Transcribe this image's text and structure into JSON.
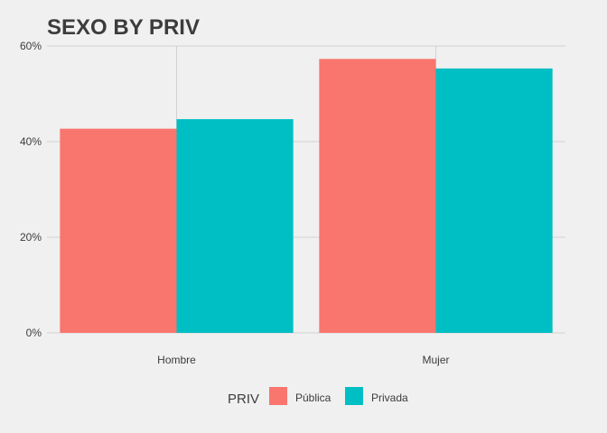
{
  "chart_data": {
    "type": "bar",
    "title": "SEXO BY PRIV",
    "xlabel": "",
    "ylabel": "",
    "categories": [
      "Hombre",
      "Mujer"
    ],
    "series": [
      {
        "name": "Pública",
        "color": "#F8766D",
        "values": [
          0.427,
          0.573
        ]
      },
      {
        "name": "Privada",
        "color": "#00BFC4",
        "values": [
          0.447,
          0.553
        ]
      }
    ],
    "ylim": [
      0,
      0.6
    ],
    "yticks": [
      0,
      0.2,
      0.4,
      0.6
    ],
    "ytick_labels": [
      "0%",
      "20%",
      "40%",
      "60%"
    ],
    "grid": true,
    "legend": {
      "title": "PRIV",
      "position": "bottom"
    }
  }
}
